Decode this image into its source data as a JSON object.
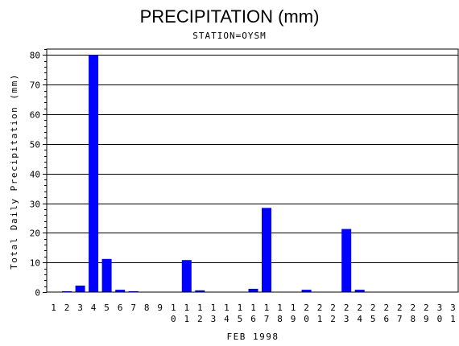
{
  "chart_data": {
    "type": "bar",
    "title": "PRECIPITATION (mm)",
    "subtitle": "STATION=OYSM",
    "xlabel": "FEB 1998",
    "ylabel": "Total Daily Precipitation (mm)",
    "ylim": [
      0,
      82
    ],
    "yticks": [
      0,
      10,
      20,
      30,
      40,
      50,
      60,
      70,
      80
    ],
    "grid": true,
    "categories": [
      "1",
      "2",
      "3",
      "4",
      "5",
      "6",
      "7",
      "8",
      "9",
      "10",
      "11",
      "12",
      "13",
      "14",
      "15",
      "16",
      "17",
      "18",
      "19",
      "20",
      "21",
      "22",
      "23",
      "24",
      "25",
      "26",
      "27",
      "28",
      "29",
      "30",
      "31"
    ],
    "values": [
      0,
      0.3,
      2.2,
      80,
      11.2,
      0.8,
      0.3,
      0,
      0,
      0,
      10.8,
      0.6,
      0,
      0,
      0,
      1.1,
      28.4,
      0,
      0,
      0.8,
      0,
      0,
      21.3,
      0.8,
      0,
      0,
      0,
      0,
      0,
      0,
      0
    ],
    "bar_color": "#0000ff"
  }
}
